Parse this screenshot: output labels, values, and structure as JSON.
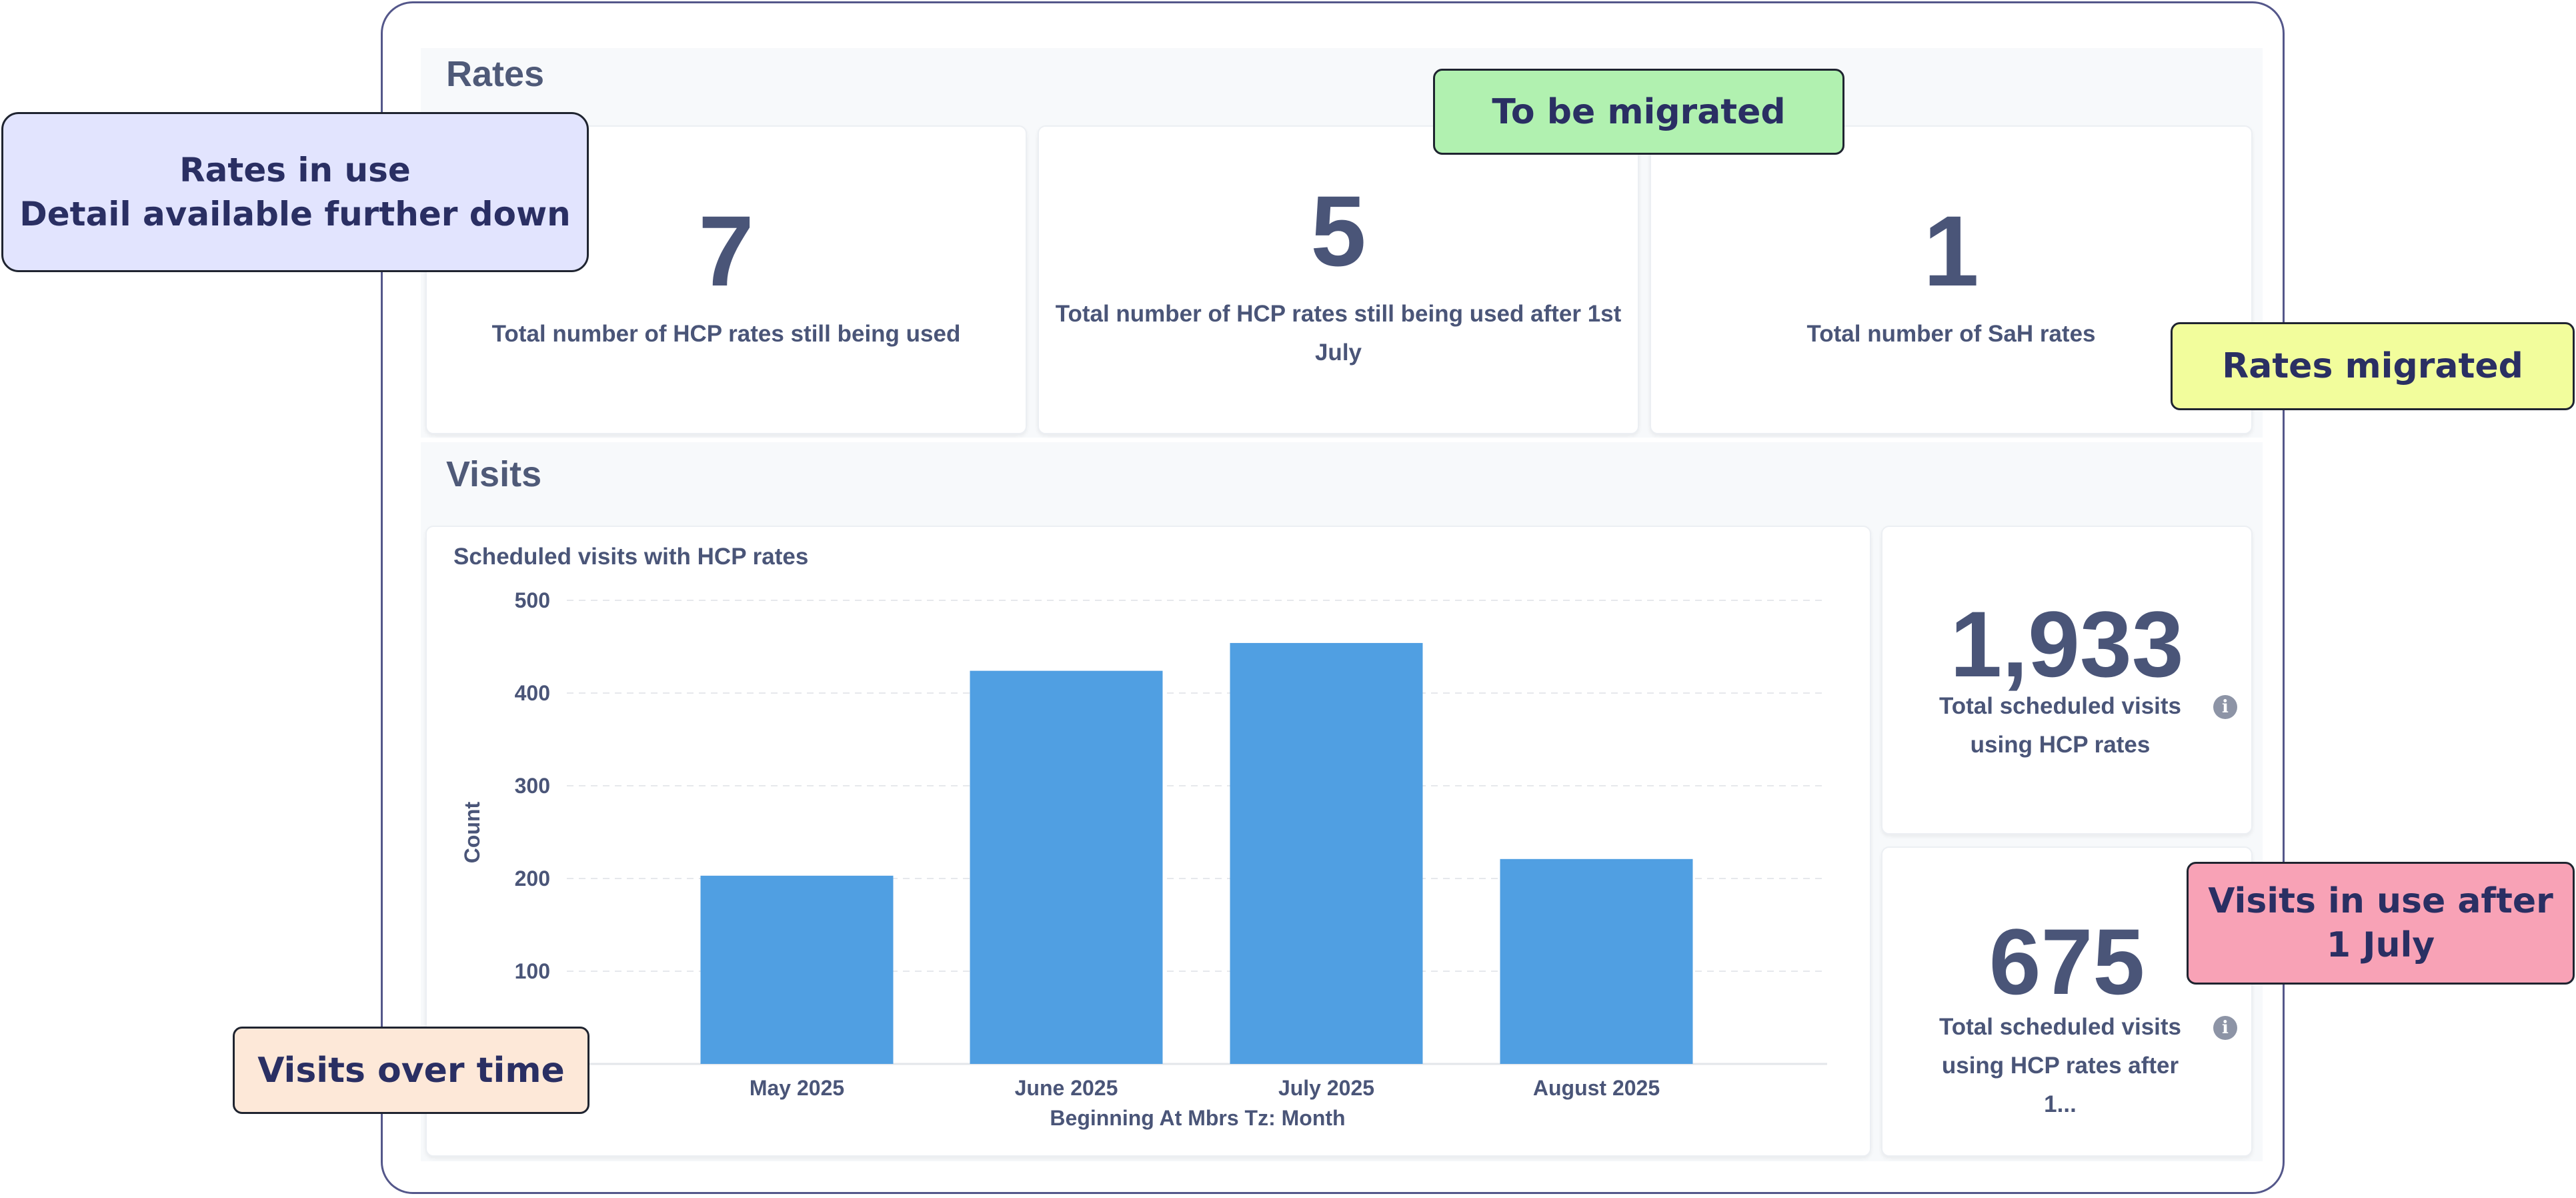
{
  "rates": {
    "title": "Rates",
    "cards": [
      {
        "value": "7",
        "label": "Total number of HCP rates still being used"
      },
      {
        "value": "5",
        "label": "Total number of HCP rates still being used after 1st July"
      },
      {
        "value": "1",
        "label": "Total number of SaH rates"
      }
    ]
  },
  "visits": {
    "title": "Visits",
    "stat_cards": [
      {
        "value": "1,933",
        "label": "Total scheduled visits using HCP rates",
        "icon": "info-icon"
      },
      {
        "value": "675",
        "label": "Total scheduled visits using HCP rates after 1...",
        "icon": "info-icon"
      }
    ]
  },
  "callouts": {
    "rates_in_use": "Rates in use\nDetail available further down",
    "to_be_migrated": "To be migrated",
    "rates_migrated": "Rates migrated",
    "visits_after_july": "Visits in use after\n1 July",
    "visits_over_time": "Visits over time"
  },
  "colors": {
    "bar": "#509fe2",
    "callout_blue": "#e2e4fe",
    "callout_green": "#b1f1b0",
    "callout_yellow": "#f2fd9c",
    "callout_pink": "#f8a2b6",
    "callout_peach": "#fde8d8",
    "frame_border": "#54578a"
  },
  "chart_data": {
    "type": "bar",
    "title": "Scheduled visits with HCP rates",
    "categories": [
      "May 2025",
      "June 2025",
      "July 2025",
      "August 2025"
    ],
    "values": [
      203,
      424,
      454,
      221
    ],
    "xlabel": "Beginning At Mbrs Tz: Month",
    "ylabel": "Count",
    "ylim": [
      0,
      500
    ],
    "yticks": [
      100,
      200,
      300,
      400,
      500
    ],
    "grid": true,
    "legend": "none"
  }
}
